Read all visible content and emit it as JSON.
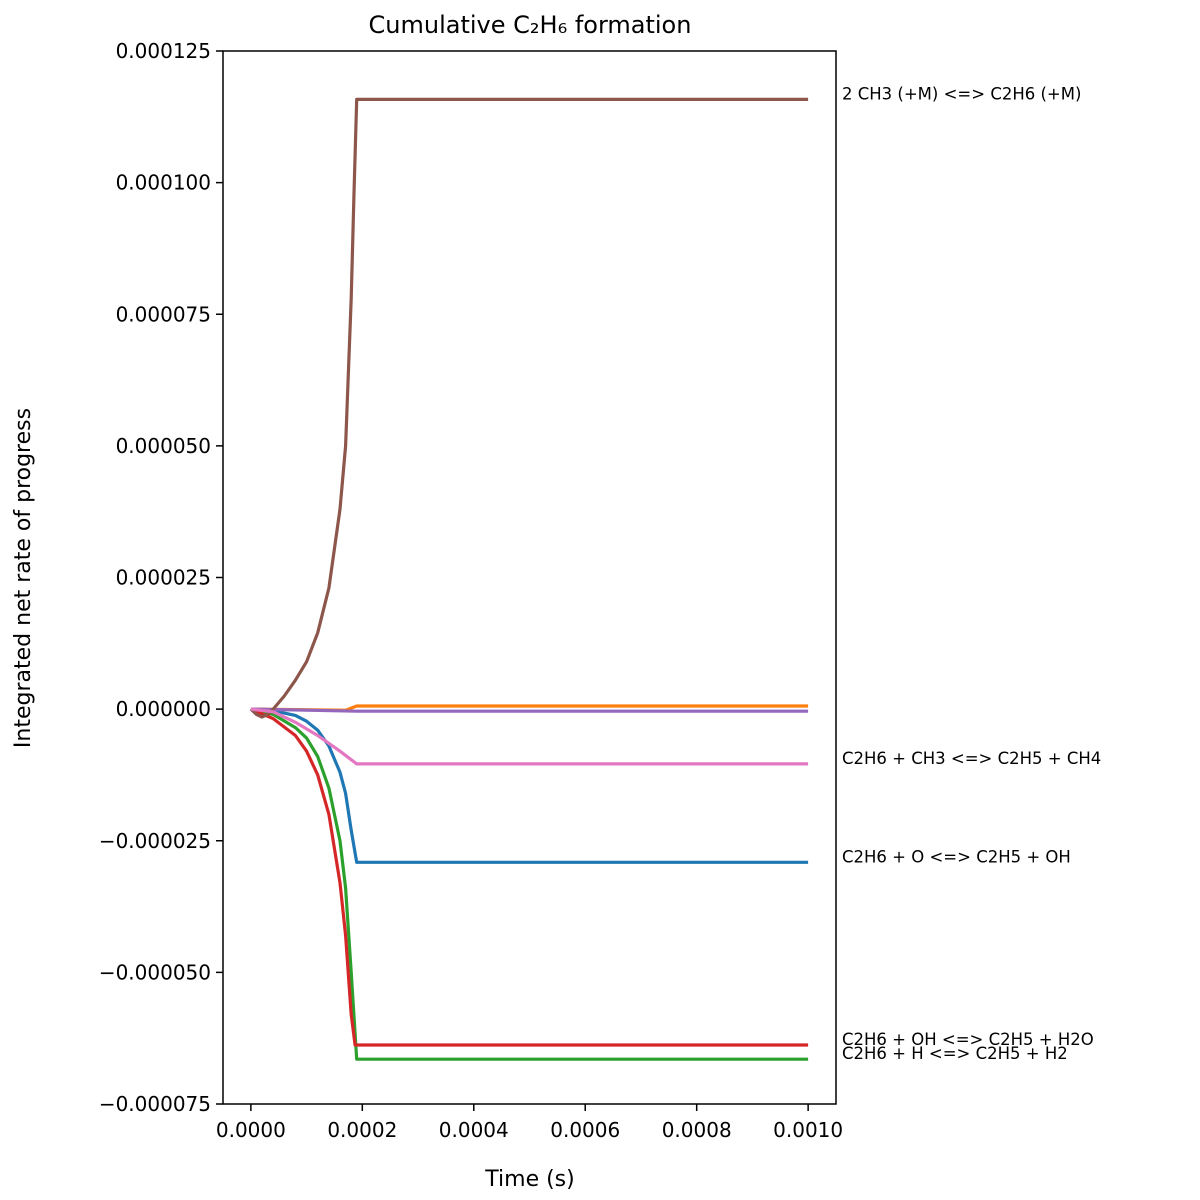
{
  "chart_data": {
    "type": "line",
    "title": "Cumulative C₂H₆ formation",
    "xlabel": "Time (s)",
    "ylabel": "Integrated net rate of progress",
    "xlim": [
      -5e-05,
      0.00105
    ],
    "ylim": [
      -7.5e-05,
      0.000125
    ],
    "grid": false,
    "x_ticks": [
      0,
      0.0002,
      0.0004,
      0.0006,
      0.0008,
      0.001
    ],
    "x_tick_labels": [
      "0.0000",
      "0.0002",
      "0.0004",
      "0.0006",
      "0.0008",
      "0.0010"
    ],
    "y_ticks": [
      -7.5e-05,
      -5e-05,
      -2.5e-05,
      0,
      2.5e-05,
      5e-05,
      7.5e-05,
      0.0001,
      0.000125
    ],
    "y_tick_labels": [
      "−0.000075",
      "−0.000050",
      "−0.000025",
      "0.000000",
      "0.000025",
      "0.000050",
      "0.000075",
      "0.000100",
      "0.000125"
    ],
    "series": [
      {
        "color": "#1f77b4",
        "annotation": "C2H6 + O <=> C2H5 + OH",
        "x": [
          0,
          4e-05,
          8e-05,
          0.0001,
          0.00012,
          0.00014,
          0.00016,
          0.00017,
          0.00018,
          0.00019,
          0.001
        ],
        "y": [
          0,
          -3e-07,
          -1.2e-06,
          -2.3e-06,
          -4e-06,
          -7e-06,
          -1.2e-05,
          -1.6e-05,
          -2.3e-05,
          -2.91e-05,
          -2.91e-05
        ]
      },
      {
        "color": "#ff7f0e",
        "annotation": "",
        "x": [
          0,
          0.00017,
          0.00019,
          0.001
        ],
        "y": [
          0,
          -2e-07,
          6e-07,
          6e-07
        ]
      },
      {
        "color": "#2ca02c",
        "annotation": "C2H6 + H <=> C2H5 + H2",
        "x": [
          0,
          4e-05,
          8e-05,
          0.0001,
          0.00012,
          0.00014,
          0.00016,
          0.00017,
          0.00018,
          0.00019,
          0.001
        ],
        "y": [
          0,
          -1e-06,
          -3.5e-06,
          -5.5e-06,
          -9e-06,
          -1.5e-05,
          -2.5e-05,
          -3.4e-05,
          -5e-05,
          -6.65e-05,
          -6.65e-05
        ]
      },
      {
        "color": "#d62728",
        "annotation": "C2H6 + OH <=> C2H5 + H2O",
        "x": [
          0,
          4e-05,
          8e-05,
          0.0001,
          0.00012,
          0.00014,
          0.00016,
          0.00017,
          0.00018,
          0.000187,
          0.001
        ],
        "y": [
          0,
          -1.8e-06,
          -5e-06,
          -8e-06,
          -1.25e-05,
          -2e-05,
          -3.3e-05,
          -4.3e-05,
          -5.8e-05,
          -6.38e-05,
          -6.38e-05
        ]
      },
      {
        "color": "#9467bd",
        "annotation": "",
        "x": [
          0,
          0.00019,
          0.001
        ],
        "y": [
          0,
          -4e-07,
          -4e-07
        ]
      },
      {
        "color": "#8c564b",
        "annotation": "2 CH3 (+M) <=> C2H6 (+M)",
        "x": [
          0,
          1e-05,
          2e-05,
          3e-05,
          4e-05,
          6e-05,
          8e-05,
          0.0001,
          0.00012,
          0.00014,
          0.00016,
          0.00017,
          0.00018,
          0.000185,
          0.00019,
          0.001
        ],
        "y": [
          0,
          -1e-06,
          -1.5e-06,
          -1e-06,
          0,
          2.5e-06,
          5.5e-06,
          9e-06,
          1.45e-05,
          2.3e-05,
          3.8e-05,
          5e-05,
          7.8e-05,
          9.8e-05,
          0.0001158,
          0.0001158
        ]
      },
      {
        "color": "#e377c2",
        "annotation": "C2H6 + CH3 <=> C2H5 + CH4",
        "x": [
          0,
          4e-05,
          8e-05,
          0.00012,
          0.00016,
          0.00019,
          0.001
        ],
        "y": [
          0,
          -5e-07,
          -2.5e-06,
          -5e-06,
          -8e-06,
          -1.04e-05,
          -1.04e-05
        ]
      }
    ]
  }
}
